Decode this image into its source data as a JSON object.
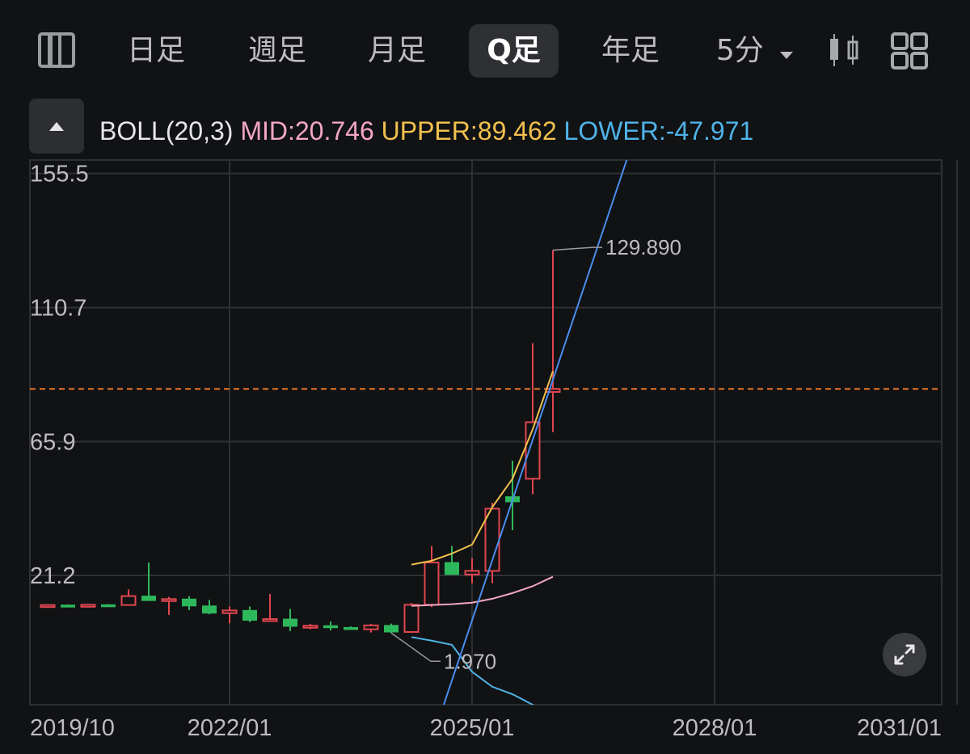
{
  "toolbar": {
    "tabs": [
      {
        "label": "日足",
        "active": false
      },
      {
        "label": "週足",
        "active": false
      },
      {
        "label": "月足",
        "active": false
      },
      {
        "label": "Q足",
        "active": true
      },
      {
        "label": "年足",
        "active": false
      },
      {
        "label": "5分",
        "active": false
      }
    ],
    "icons": [
      "panel-toggle-icon",
      "dropdown-caret-icon",
      "candlestick-icon",
      "grid-layout-icon"
    ]
  },
  "indicator": {
    "name": "BOLL(20,3)",
    "mid": "MID:20.746",
    "upper": "UPPER:89.462",
    "lower": "LOWER:-47.971",
    "colors": {
      "name": "#e6e6e8",
      "mid": "#f2a7c3",
      "upper": "#f2c14e",
      "lower": "#4fb3e8"
    }
  },
  "chart_data": {
    "type": "candlestick",
    "y_ticks": [
      "155.5",
      "110.7",
      "65.9",
      "21.2"
    ],
    "y_tick_values": [
      155.5,
      110.7,
      65.9,
      21.2
    ],
    "x_ticks": [
      "2019/10",
      "2022/01",
      "2025/01",
      "2028/01",
      "2031/01"
    ],
    "x_tick_values": [
      2019.75,
      2022.0,
      2025.0,
      2028.0,
      2031.0
    ],
    "ylim": [
      -22,
      160
    ],
    "xlim": [
      2019.65,
      2030.95
    ],
    "period_years": 0.25,
    "grid": true,
    "colors": {
      "up": "#e0464f",
      "down": "#2eb85c",
      "price_line": "#e8742c",
      "trend_line": "#4a8df0"
    },
    "candles": [
      {
        "t": 2019.75,
        "o": 11.2,
        "h": 11.4,
        "l": 11.0,
        "c": 11.3
      },
      {
        "t": 2020.0,
        "o": 11.3,
        "h": 11.5,
        "l": 11.1,
        "c": 11.2
      },
      {
        "t": 2020.25,
        "o": 11.2,
        "h": 11.5,
        "l": 11.0,
        "c": 11.4
      },
      {
        "t": 2020.5,
        "o": 11.4,
        "h": 11.6,
        "l": 11.2,
        "c": 11.3
      },
      {
        "t": 2020.75,
        "o": 11.3,
        "h": 16.5,
        "l": 11.3,
        "c": 14.3
      },
      {
        "t": 2021.0,
        "o": 14.3,
        "h": 25.5,
        "l": 12.7,
        "c": 12.8
      },
      {
        "t": 2021.25,
        "o": 12.8,
        "h": 14.0,
        "l": 8.0,
        "c": 13.3
      },
      {
        "t": 2021.5,
        "o": 13.3,
        "h": 14.3,
        "l": 9.6,
        "c": 11.0
      },
      {
        "t": 2021.75,
        "o": 11.0,
        "h": 13.0,
        "l": 8.2,
        "c": 8.6
      },
      {
        "t": 2022.0,
        "o": 8.6,
        "h": 10.8,
        "l": 5.2,
        "c": 9.5
      },
      {
        "t": 2022.25,
        "o": 9.5,
        "h": 10.8,
        "l": 5.6,
        "c": 6.2
      },
      {
        "t": 2022.5,
        "o": 6.2,
        "h": 15.0,
        "l": 6.0,
        "c": 6.6
      },
      {
        "t": 2022.75,
        "o": 6.6,
        "h": 10.0,
        "l": 2.6,
        "c": 4.2
      },
      {
        "t": 2023.0,
        "o": 4.2,
        "h": 5.0,
        "l": 3.2,
        "c": 4.4
      },
      {
        "t": 2023.25,
        "o": 4.4,
        "h": 5.8,
        "l": 2.8,
        "c": 3.8
      },
      {
        "t": 2023.5,
        "o": 3.8,
        "h": 4.2,
        "l": 3.1,
        "c": 3.2
      },
      {
        "t": 2023.75,
        "o": 3.2,
        "h": 5.0,
        "l": 2.1,
        "c": 4.5
      },
      {
        "t": 2024.0,
        "o": 4.5,
        "h": 5.1,
        "l": 1.97,
        "c": 2.3
      },
      {
        "t": 2024.25,
        "o": 2.3,
        "h": 12.0,
        "l": 2.0,
        "c": 11.4
      },
      {
        "t": 2024.5,
        "o": 11.4,
        "h": 31.0,
        "l": 10.6,
        "c": 25.5
      },
      {
        "t": 2024.75,
        "o": 25.5,
        "h": 31.0,
        "l": 21.5,
        "c": 21.5
      },
      {
        "t": 2025.0,
        "o": 21.5,
        "h": 27.0,
        "l": 18.6,
        "c": 22.7
      },
      {
        "t": 2025.25,
        "o": 22.7,
        "h": 45.5,
        "l": 18.6,
        "c": 43.5
      },
      {
        "t": 2025.5,
        "o": 47.5,
        "h": 59.5,
        "l": 36.3,
        "c": 45.8
      },
      {
        "t": 2025.75,
        "o": 53.5,
        "h": 98.8,
        "l": 48.3,
        "c": 72.4
      },
      {
        "t": 2026.0,
        "o": 82.5,
        "h": 129.89,
        "l": 69.1,
        "c": 83.5
      }
    ],
    "boll": {
      "t": [
        2024.25,
        2024.5,
        2024.75,
        2025.0,
        2025.25,
        2025.5,
        2025.75,
        2026.0
      ],
      "upper": [
        24.8,
        26.1,
        28.5,
        31.5,
        44.0,
        53.5,
        70.0,
        89.462
      ],
      "mid": [
        11.0,
        11.3,
        11.6,
        12.1,
        13.4,
        15.3,
        17.6,
        20.746
      ],
      "lower": [
        0.6,
        -0.6,
        -2.0,
        -11.0,
        -16.0,
        -18.5,
        -22,
        -47.971
      ]
    },
    "trend_line": {
      "t": [
        2024.6,
        2026.95
      ],
      "v": [
        -26,
        163
      ]
    },
    "current_price": 83.5,
    "annotations": [
      {
        "label": "129.890",
        "t": 2026.0,
        "v": 129.89,
        "text_t": 2026.65,
        "text_v": 130.8
      },
      {
        "label": "1.970",
        "t": 2024.0,
        "v": 1.97,
        "text_t": 2024.65,
        "text_v": -7.5
      }
    ]
  }
}
